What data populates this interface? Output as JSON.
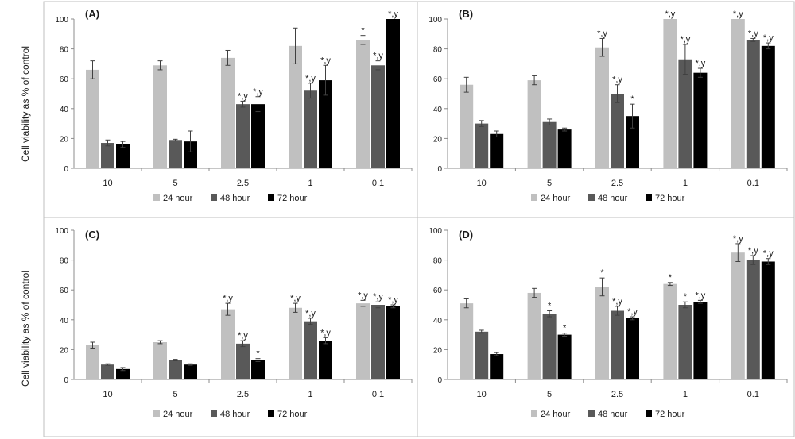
{
  "figure": {
    "ylabel": "Cell viability as % of control",
    "legend": [
      "24 hour",
      "48 hour",
      "72 hour"
    ],
    "series_colors": [
      "#c0c0c0",
      "#595959",
      "#000000"
    ]
  },
  "chart_data": [
    {
      "type": "bar",
      "title": "(A)",
      "categories": [
        "10",
        "5",
        "2.5",
        "1",
        "0.1"
      ],
      "ylim": [
        0,
        100
      ],
      "yticks": [
        0,
        20,
        40,
        60,
        80,
        100
      ],
      "legend_position": "bottom",
      "series": [
        {
          "name": "24 hour",
          "values": [
            66,
            69,
            74,
            82,
            86
          ],
          "errors": [
            6,
            3,
            5,
            12,
            3
          ],
          "annotations": [
            "",
            "",
            "",
            "",
            "*"
          ]
        },
        {
          "name": "48 hour",
          "values": [
            17,
            19,
            43,
            52,
            69
          ],
          "errors": [
            2,
            0.5,
            2,
            5,
            3
          ],
          "annotations": [
            "",
            "",
            "*,y",
            "*,y",
            "*,y"
          ]
        },
        {
          "name": "72 hour",
          "values": [
            16,
            18,
            43,
            59,
            100
          ],
          "errors": [
            2,
            7,
            5,
            10,
            0
          ],
          "annotations": [
            "",
            "",
            "*,y",
            "*,y",
            "*,y"
          ]
        }
      ]
    },
    {
      "type": "bar",
      "title": "(B)",
      "categories": [
        "10",
        "5",
        "2.5",
        "1",
        "0.1"
      ],
      "ylim": [
        0,
        100
      ],
      "yticks": [
        0,
        20,
        40,
        60,
        80,
        100
      ],
      "legend_position": "bottom",
      "series": [
        {
          "name": "24 hour",
          "values": [
            56,
            59,
            81,
            100,
            100
          ],
          "errors": [
            5,
            3,
            6,
            0,
            0
          ],
          "annotations": [
            "",
            "",
            "*,y",
            "*,y",
            "*,y"
          ]
        },
        {
          "name": "48 hour",
          "values": [
            30,
            31,
            50,
            73,
            86
          ],
          "errors": [
            2,
            2,
            6,
            10,
            1
          ],
          "annotations": [
            "",
            "",
            "*,y",
            "*,y",
            "*,y"
          ]
        },
        {
          "name": "72 hour",
          "values": [
            23,
            26,
            35,
            64,
            82
          ],
          "errors": [
            2,
            1,
            8,
            3,
            2
          ],
          "annotations": [
            "",
            "",
            "*",
            "*,y",
            "*,y"
          ]
        }
      ]
    },
    {
      "type": "bar",
      "title": "(C)",
      "categories": [
        "10",
        "5",
        "2.5",
        "1",
        "0.1"
      ],
      "ylim": [
        0,
        100
      ],
      "yticks": [
        0,
        20,
        40,
        60,
        80,
        100
      ],
      "legend_position": "bottom",
      "series": [
        {
          "name": "24 hour",
          "values": [
            23,
            25,
            47,
            48,
            51
          ],
          "errors": [
            2,
            1,
            4,
            3,
            2
          ],
          "annotations": [
            "",
            "",
            "*,y",
            "*,y",
            "*,y"
          ]
        },
        {
          "name": "48 hour",
          "values": [
            10,
            13,
            24,
            39,
            50
          ],
          "errors": [
            0.5,
            0.5,
            2,
            2,
            2
          ],
          "annotations": [
            "",
            "",
            "*,y",
            "*,y",
            "*,y"
          ]
        },
        {
          "name": "72 hour",
          "values": [
            7,
            10,
            13,
            26,
            49
          ],
          "errors": [
            1,
            0.5,
            1,
            2,
            1
          ],
          "annotations": [
            "",
            "",
            "*",
            "*,y",
            "*,y"
          ]
        }
      ]
    },
    {
      "type": "bar",
      "title": "(D)",
      "categories": [
        "10",
        "5",
        "2.5",
        "1",
        "0.1"
      ],
      "ylim": [
        0,
        100
      ],
      "yticks": [
        0,
        20,
        40,
        60,
        80,
        100
      ],
      "legend_position": "bottom",
      "series": [
        {
          "name": "24 hour",
          "values": [
            51,
            58,
            62,
            64,
            85
          ],
          "errors": [
            3,
            3,
            6,
            1,
            6
          ],
          "annotations": [
            "",
            "",
            "*",
            "*",
            "*,y"
          ]
        },
        {
          "name": "48 hour",
          "values": [
            32,
            44,
            46,
            50,
            80
          ],
          "errors": [
            1,
            2,
            3,
            2,
            3
          ],
          "annotations": [
            "",
            "*",
            "*,y",
            "*",
            "*,y"
          ]
        },
        {
          "name": "72 hour",
          "values": [
            17,
            30,
            41,
            52,
            79
          ],
          "errors": [
            1,
            1,
            1,
            1,
            2
          ],
          "annotations": [
            "",
            "*",
            "*,y",
            "*,y",
            "*,y"
          ]
        }
      ]
    }
  ]
}
